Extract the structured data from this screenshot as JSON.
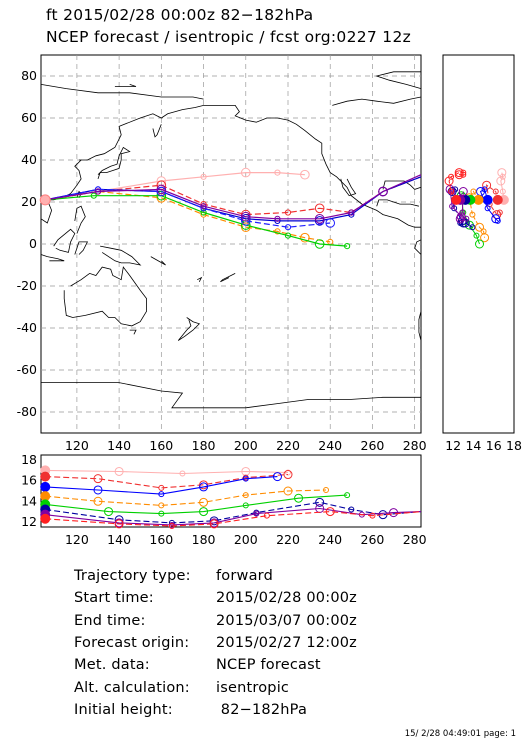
{
  "header": {
    "line1": "ft 2015/02/28 00:00z  82−182hPa",
    "line2": "NCEP forecast / isentropic / fcst org:0227 12z"
  },
  "chart_data": [
    {
      "type": "line",
      "name": "map",
      "xlim": [
        103,
        283
      ],
      "ylim": [
        -90,
        90
      ],
      "x_ticks": [
        120,
        140,
        160,
        180,
        200,
        220,
        240,
        260,
        280
      ],
      "y_ticks": [
        -80,
        -60,
        -40,
        -20,
        0,
        20,
        40,
        60,
        80
      ],
      "grid": true,
      "series": [
        {
          "color": "#ffb0b0",
          "points": [
            [
              105,
              21
            ],
            [
              130,
              25
            ],
            [
              160,
              30
            ],
            [
              180,
              32
            ],
            [
              200,
              34
            ],
            [
              215,
              34
            ],
            [
              228,
              33
            ]
          ]
        },
        {
          "color": "#f03030",
          "points": [
            [
              105,
              21
            ],
            [
              130,
              25
            ],
            [
              160,
              28
            ],
            [
              180,
              19
            ],
            [
              200,
              14
            ],
            [
              220,
              15
            ],
            [
              235,
              17
            ],
            [
              250,
              15
            ],
            [
              265,
              25
            ],
            [
              283,
              32
            ]
          ]
        },
        {
          "color": "#0000d0",
          "points": [
            [
              105,
              21
            ],
            [
              130,
              26
            ],
            [
              160,
              25
            ],
            [
              180,
              17
            ],
            [
              200,
              12
            ],
            [
              215,
              11
            ],
            [
              235,
              11
            ],
            [
              250,
              14
            ],
            [
              265,
              25
            ],
            [
              283,
              32
            ]
          ]
        },
        {
          "color": "#ff8c00",
          "points": [
            [
              105,
              21
            ],
            [
              130,
              25
            ],
            [
              160,
              22
            ],
            [
              180,
              14
            ],
            [
              200,
              8
            ],
            [
              215,
              6
            ],
            [
              228,
              3
            ],
            [
              240,
              1
            ]
          ]
        },
        {
          "color": "#00d000",
          "points": [
            [
              105,
              21
            ],
            [
              128,
              23
            ],
            [
              160,
              23
            ],
            [
              180,
              15
            ],
            [
              200,
              9
            ],
            [
              220,
              4
            ],
            [
              235,
              0
            ],
            [
              248,
              -1
            ]
          ]
        },
        {
          "color": "#2020ff",
          "points": [
            [
              105,
              21
            ],
            [
              130,
              26
            ],
            [
              160,
              25
            ],
            [
              180,
              17
            ],
            [
              200,
              11
            ],
            [
              220,
              8
            ],
            [
              240,
              10
            ]
          ]
        },
        {
          "color": "#8000a0",
          "points": [
            [
              105,
              21
            ],
            [
              130,
              25
            ],
            [
              160,
              26
            ],
            [
              180,
              18
            ],
            [
              200,
              13
            ],
            [
              215,
              12
            ],
            [
              235,
              12
            ],
            [
              250,
              15
            ],
            [
              265,
              25
            ],
            [
              283,
              33
            ]
          ]
        }
      ]
    },
    {
      "type": "scatter",
      "name": "height-latitude",
      "xlim": [
        11,
        18
      ],
      "x_ticks": [
        12,
        14,
        16,
        18
      ],
      "ylim": [
        -90,
        90
      ]
    },
    {
      "type": "line",
      "name": "height-time",
      "xlim": [
        103,
        283
      ],
      "ylim": [
        11.5,
        18.5
      ],
      "x_ticks": [
        120,
        140,
        160,
        180,
        200,
        220,
        240,
        260,
        280
      ],
      "y_ticks": [
        12,
        14,
        16,
        18
      ],
      "series": [
        {
          "color": "#ffb0b0",
          "points": [
            [
              105,
              17
            ],
            [
              140,
              16.9
            ],
            [
              170,
              16.7
            ],
            [
              200,
              16.9
            ],
            [
              220,
              16.8
            ]
          ]
        },
        {
          "color": "#f03030",
          "points": [
            [
              105,
              16.4
            ],
            [
              130,
              16.2
            ],
            [
              160,
              15.3
            ],
            [
              180,
              15.6
            ],
            [
              200,
              16.3
            ],
            [
              220,
              16.6
            ]
          ]
        },
        {
          "color": "#0000ff",
          "points": [
            [
              105,
              15.4
            ],
            [
              130,
              15.1
            ],
            [
              160,
              14.7
            ],
            [
              180,
              15.4
            ],
            [
              200,
              16.2
            ],
            [
              215,
              16.4
            ]
          ]
        },
        {
          "color": "#ff8c00",
          "points": [
            [
              105,
              14.5
            ],
            [
              130,
              14.0
            ],
            [
              160,
              13.6
            ],
            [
              180,
              13.9
            ],
            [
              200,
              14.6
            ],
            [
              220,
              15.0
            ],
            [
              238,
              15.1
            ]
          ]
        },
        {
          "color": "#00d000",
          "points": [
            [
              105,
              13.7
            ],
            [
              135,
              13.0
            ],
            [
              160,
              12.8
            ],
            [
              180,
              13.0
            ],
            [
              200,
              13.6
            ],
            [
              225,
              14.3
            ],
            [
              248,
              14.6
            ]
          ]
        },
        {
          "color": "#0000a0",
          "points": [
            [
              105,
              13.2
            ],
            [
              140,
              12.2
            ],
            [
              165,
              11.9
            ],
            [
              185,
              12.1
            ],
            [
              205,
              12.9
            ],
            [
              235,
              13.9
            ],
            [
              250,
              13.2
            ],
            [
              265,
              12.7
            ],
            [
              283,
              13.0
            ]
          ]
        },
        {
          "color": "#8000a0",
          "points": [
            [
              105,
              12.7
            ],
            [
              140,
              11.9
            ],
            [
              165,
              11.7
            ],
            [
              185,
              11.9
            ],
            [
              205,
              12.8
            ],
            [
              235,
              13.3
            ],
            [
              255,
              12.7
            ],
            [
              270,
              12.9
            ],
            [
              283,
              13.0
            ]
          ]
        },
        {
          "color": "#ff2020",
          "points": [
            [
              105,
              12.3
            ],
            [
              140,
              11.8
            ],
            [
              165,
              11.6
            ],
            [
              185,
              11.8
            ],
            [
              210,
              12.6
            ],
            [
              240,
              13.0
            ],
            [
              260,
              12.6
            ],
            [
              283,
              13.0
            ]
          ]
        }
      ]
    }
  ],
  "info": [
    {
      "label": "Trajectory type:",
      "value": "forward"
    },
    {
      "label": "Start time:",
      "value": "2015/02/28 00:00z"
    },
    {
      "label": "End time:",
      "value": "2015/03/07 00:00z"
    },
    {
      "label": "Forecast origin:",
      "value": "2015/02/27 12:00z"
    },
    {
      "label": "Met. data:",
      "value": "NCEP forecast"
    },
    {
      "label": "Alt. calculation:",
      "value": "isentropic"
    },
    {
      "label": "Initial height:",
      "value": " 82−182hPa"
    }
  ],
  "footer": "15/ 2/28 04:49:01 page: 1"
}
